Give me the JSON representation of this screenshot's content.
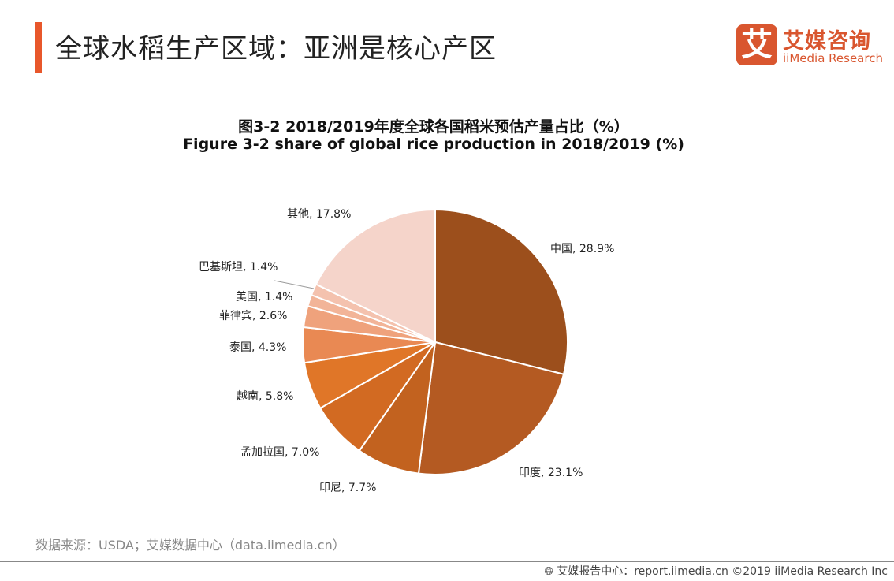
{
  "header": {
    "title": "全球水稻生产区域：亚洲是核心产区",
    "logo_mark": "艾",
    "logo_cn": "艾媒咨询",
    "logo_en": "iiMedia Research"
  },
  "chart_data": {
    "type": "pie",
    "title": "图3-2 2018/2019年度全球各国稻米预估产量占比（%）",
    "subtitle": "Figure 3-2 share of global rice production in 2018/2019 (%)",
    "unit": "%",
    "start": "12 o'clock, clockwise",
    "slices": [
      {
        "name": "中国",
        "value": 28.9,
        "label": "中国, 28.9%",
        "color": "#9C4F1C"
      },
      {
        "name": "印度",
        "value": 23.1,
        "label": "印度, 23.1%",
        "color": "#B45A22"
      },
      {
        "name": "印尼",
        "value": 7.7,
        "label": "印尼, 7.7%",
        "color": "#C2621F"
      },
      {
        "name": "孟加拉国",
        "value": 7.0,
        "label": "孟加拉国, 7.0%",
        "color": "#D26A22"
      },
      {
        "name": "越南",
        "value": 5.8,
        "label": "越南, 5.8%",
        "color": "#E07628"
      },
      {
        "name": "泰国",
        "value": 4.3,
        "label": "泰国, 4.3%",
        "color": "#E98953"
      },
      {
        "name": "菲律宾",
        "value": 2.6,
        "label": "菲律宾, 2.6%",
        "color": "#EFA27C"
      },
      {
        "name": "美国",
        "value": 1.4,
        "label": "美国, 1.4%",
        "color": "#F2B498"
      },
      {
        "name": "巴基斯坦",
        "value": 1.4,
        "label": "巴基斯坦, 1.4%",
        "color": "#F4C2AE"
      },
      {
        "name": "其他",
        "value": 17.8,
        "label": "其他, 17.8%",
        "color": "#F5D4CA"
      }
    ]
  },
  "source": "数据来源：USDA；艾媒数据中心（data.iimedia.cn）",
  "footer": {
    "icon": "globe-cursor-icon",
    "text": "艾媒报告中心：report.iimedia.cn  ©2019  iiMedia Research  Inc"
  }
}
